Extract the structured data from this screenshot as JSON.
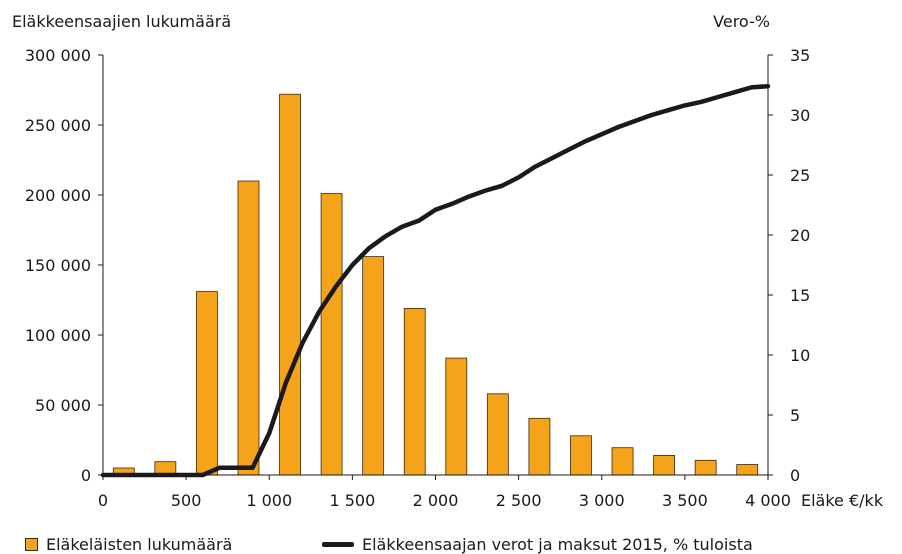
{
  "chart_data": {
    "type": "bar",
    "y_left_title": "Eläkkeensaajien lukumäärä",
    "y_right_title": "Vero-%",
    "x_axis_label": "Eläke €/kk",
    "x_tick_labels": [
      "0",
      "500",
      "1 000",
      "1 500",
      "2 000",
      "2 500",
      "3 000",
      "3 500",
      "4 000"
    ],
    "x_ticks": [
      0,
      500,
      1000,
      1500,
      2000,
      2500,
      3000,
      3500,
      4000
    ],
    "x_range": [
      0,
      4000
    ],
    "y_left_tick_labels": [
      "0",
      "50 000",
      "100 000",
      "150 000",
      "200 000",
      "250 000",
      "300 000"
    ],
    "y_left_ticks": [
      0,
      50000,
      100000,
      150000,
      200000,
      250000,
      300000
    ],
    "y_left_range": [
      0,
      300000
    ],
    "y_right_tick_labels": [
      "0",
      "5",
      "10",
      "15",
      "20",
      "25",
      "30",
      "35"
    ],
    "y_right_ticks": [
      0,
      5,
      10,
      15,
      20,
      25,
      30,
      35
    ],
    "y_right_range": [
      0,
      35
    ],
    "grid": false,
    "legend_position": "bottom",
    "bars": {
      "name": "Eläkeläisten lukumäärä",
      "color": "#f5a31a",
      "x": [
        125,
        375,
        625,
        875,
        1125,
        1375,
        1625,
        1875,
        2125,
        2375,
        2625,
        2875,
        3125,
        3375,
        3625,
        3875
      ],
      "values": [
        5000,
        9500,
        131000,
        210000,
        272000,
        201000,
        156000,
        119000,
        83500,
        58000,
        40500,
        28000,
        19500,
        14000,
        10500,
        7500
      ]
    },
    "line": {
      "name": "Eläkkeensaajan verot ja maksut 2015, % tuloista",
      "color": "#1a1a1a",
      "x": [
        0,
        300,
        600,
        700,
        800,
        900,
        1000,
        1100,
        1200,
        1300,
        1400,
        1500,
        1600,
        1700,
        1800,
        1900,
        2000,
        2100,
        2200,
        2300,
        2400,
        2500,
        2600,
        2700,
        2800,
        2900,
        3000,
        3100,
        3200,
        3300,
        3400,
        3500,
        3600,
        3700,
        3800,
        3900,
        4000
      ],
      "values": [
        0,
        0,
        0,
        0.6,
        0.6,
        0.6,
        3.5,
        7.7,
        11.0,
        13.6,
        15.7,
        17.5,
        18.9,
        19.9,
        20.7,
        21.2,
        22.1,
        22.6,
        23.2,
        23.7,
        24.1,
        24.8,
        25.7,
        26.4,
        27.1,
        27.8,
        28.4,
        29.0,
        29.5,
        30.0,
        30.4,
        30.8,
        31.1,
        31.5,
        31.9,
        32.3,
        32.4
      ]
    }
  }
}
